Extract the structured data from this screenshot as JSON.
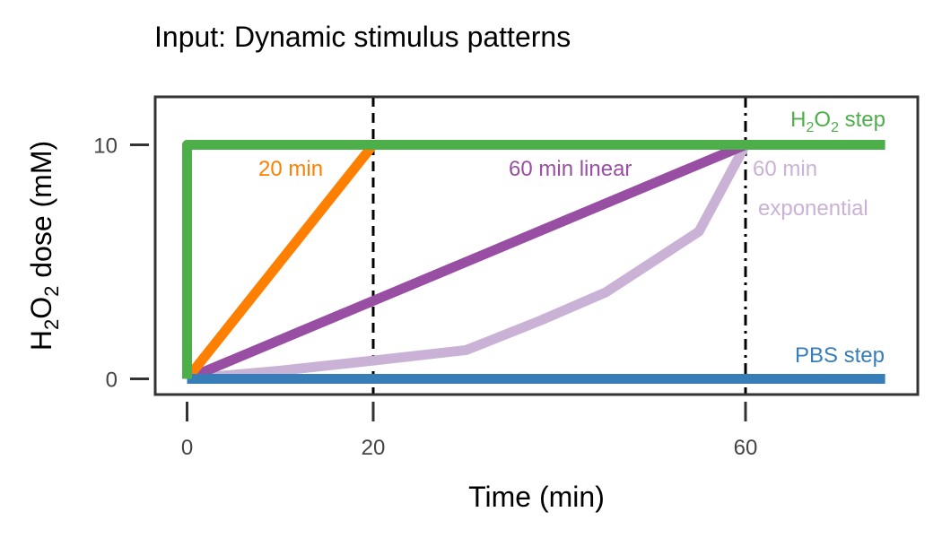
{
  "chart_data": {
    "type": "line",
    "title": "Input: Dynamic stimulus patterns",
    "xlabel": "Time (min)",
    "ylabel": {
      "pre": "H",
      "sub1": "2",
      "mid": "O",
      "sub2": "2",
      "post": " dose (mM)"
    },
    "xlim": [
      0,
      80
    ],
    "ylim": [
      -0.7,
      12.1
    ],
    "xticks": [
      0,
      20,
      60
    ],
    "xtick_labels": [
      "0",
      "20",
      "60"
    ],
    "yticks": [
      0,
      10
    ],
    "ytick_labels": [
      "0",
      "10"
    ],
    "grid": false,
    "legend": "none",
    "reference_lines": [
      {
        "x": 20,
        "style": "dashed"
      },
      {
        "x": 60,
        "style": "dashdot"
      }
    ],
    "series": [
      {
        "key": "h2o2_step",
        "color": "#4daf4a",
        "x": [
          0,
          0,
          75
        ],
        "y": [
          0,
          10,
          10
        ]
      },
      {
        "key": "pbs_step",
        "color": "#377eb8",
        "x": [
          0,
          75
        ],
        "y": [
          0,
          0
        ]
      },
      {
        "key": "ramp_20",
        "color": "#ff7f00",
        "x": [
          0,
          20
        ],
        "y": [
          0,
          10
        ]
      },
      {
        "key": "ramp_60_linear",
        "color": "#984ea3",
        "x": [
          0,
          60
        ],
        "y": [
          0,
          10
        ]
      },
      {
        "key": "ramp_60_exp",
        "color": "#cab2d6",
        "x": [
          0,
          10,
          20,
          30,
          38,
          45,
          50,
          55,
          60
        ],
        "y": [
          0,
          0.35,
          0.78,
          1.23,
          2.5,
          3.7,
          5.0,
          6.3,
          10
        ]
      }
    ],
    "annotations": [
      {
        "key": "h2o2_step",
        "color": "#4daf4a",
        "parts": [
          "H",
          "2",
          "O",
          "2",
          " step"
        ]
      },
      {
        "key": "pbs_step",
        "color": "#377eb8",
        "text": "PBS step"
      },
      {
        "key": "ramp_20",
        "color": "#ff7f00",
        "text": "20 min"
      },
      {
        "key": "ramp_60_linear",
        "color": "#984ea3",
        "text": "60 min linear"
      },
      {
        "key": "ramp_60_exp_1",
        "color": "#cab2d6",
        "text": "60 min"
      },
      {
        "key": "ramp_60_exp_2",
        "color": "#cab2d6",
        "text": "exponential"
      }
    ]
  }
}
